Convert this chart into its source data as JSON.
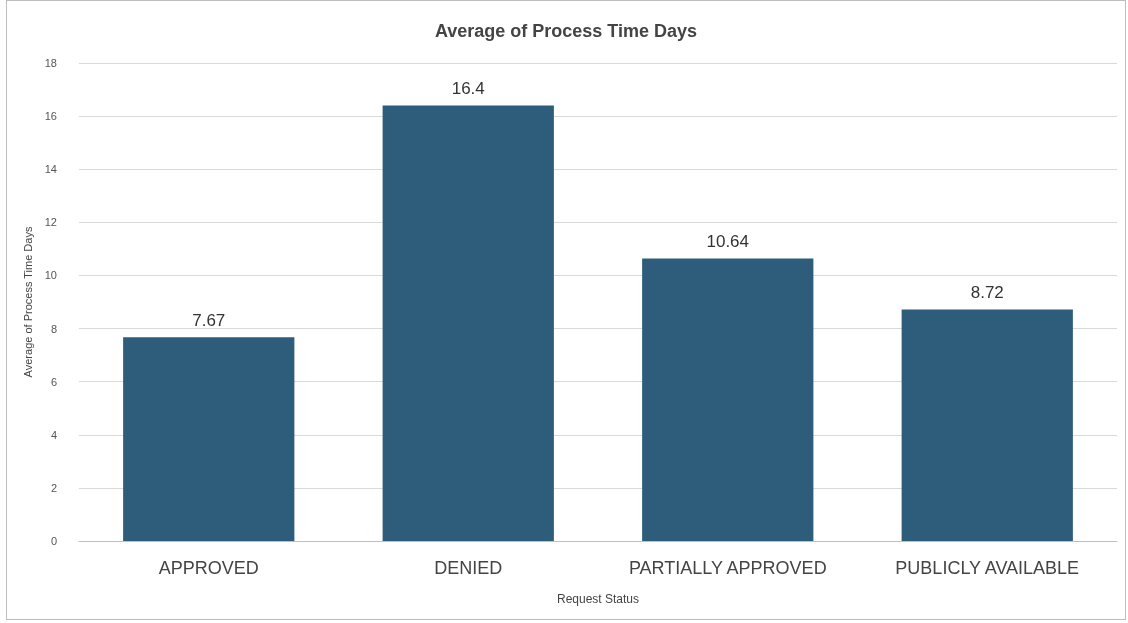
{
  "chart_data": {
    "type": "bar",
    "title": "Average of Process Time Days",
    "xlabel": "Request Status",
    "ylabel": "Average of Process Time Days",
    "categories": [
      "APPROVED",
      "DENIED",
      "PARTIALLY APPROVED",
      "PUBLICLY AVAILABLE"
    ],
    "values": [
      7.67,
      16.4,
      10.64,
      8.72
    ],
    "color": "#2e5d7b",
    "ylim": [
      0,
      18
    ],
    "yticks": [
      0,
      2,
      4,
      6,
      8,
      10,
      12,
      14,
      16,
      18
    ],
    "grid": "y",
    "data_labels": true
  }
}
